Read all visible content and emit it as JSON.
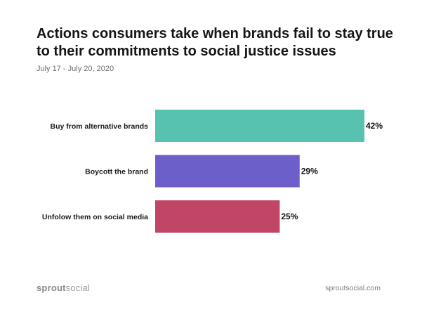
{
  "header": {
    "title": "Actions consumers take when brands fail to stay true to their commitments to social justice issues",
    "date_range": "July 17 - July 20, 2020"
  },
  "chart_data": {
    "type": "bar",
    "orientation": "horizontal",
    "categories": [
      "Buy from alternative brands",
      "Boycott the brand",
      "Unfolow them on social media"
    ],
    "values": [
      42,
      29,
      25
    ],
    "value_labels": [
      "42%",
      "29%",
      "25%"
    ],
    "colors": [
      "#58C2B1",
      "#6C5FCA",
      "#C04567"
    ],
    "xlim": [
      0,
      100
    ],
    "grid": false
  },
  "footer": {
    "brand_part1": "sprout",
    "brand_part2": "social",
    "url": "sproutsocial.com"
  }
}
